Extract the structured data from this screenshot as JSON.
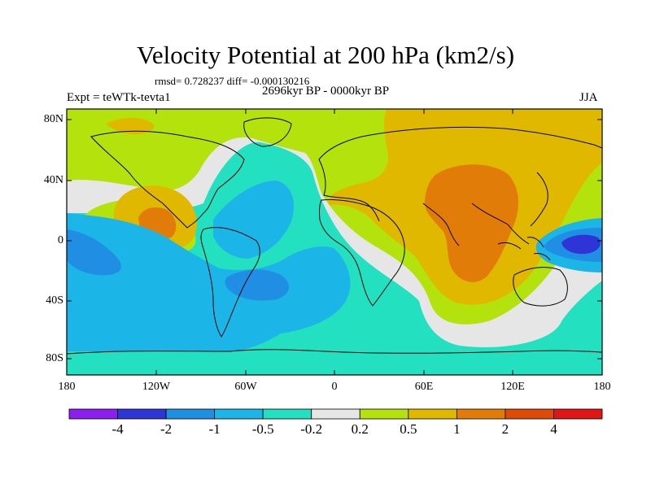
{
  "header": {
    "title": "Velocity Potential at 200 hPa (km2/s)",
    "stats": "rmsd= 0.728237 diff= -0.000130216",
    "period": "2696kyr BP - 0000kyr BP",
    "experiment": "Expt = teWTk-tevta1",
    "season": "JJA"
  },
  "axes": {
    "lat_ticks": [
      "80N",
      "40N",
      "0",
      "40S",
      "80S"
    ],
    "lon_ticks": [
      "180",
      "120W",
      "60W",
      "0",
      "60E",
      "120E",
      "180"
    ]
  },
  "colorbar": {
    "labels": [
      "-4",
      "-2",
      "-1",
      "-0.5",
      "-0.2",
      "0.2",
      "0.5",
      "1",
      "2",
      "4"
    ],
    "colors": [
      "#8c1ef0",
      "#2d35d7",
      "#1f8ee3",
      "#1cb5e8",
      "#22e0c0",
      "#e6e6e6",
      "#b4e20c",
      "#e0b800",
      "#e27c08",
      "#e04a08",
      "#e01515"
    ]
  }
}
